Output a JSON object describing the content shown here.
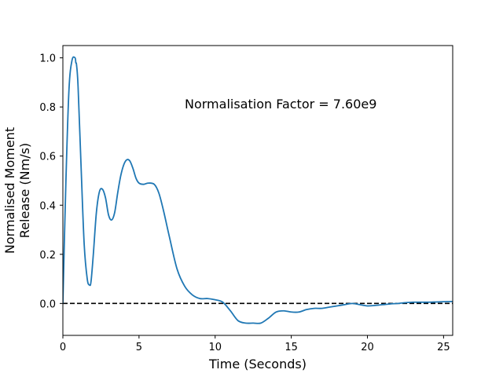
{
  "chart_data": {
    "type": "line",
    "title": "",
    "xlabel": "Time (Seconds)",
    "ylabel_lines": [
      "Normalised Moment",
      "Release (Nm/s)"
    ],
    "xlim": [
      0,
      25.6
    ],
    "ylim": [
      -0.13,
      1.05
    ],
    "x_ticks": [
      0,
      5,
      10,
      15,
      20,
      25
    ],
    "x_tick_labels": [
      "0",
      "5",
      "10",
      "15",
      "20",
      "25"
    ],
    "y_ticks": [
      0.0,
      0.2,
      0.4,
      0.6,
      0.8,
      1.0
    ],
    "y_tick_labels": [
      "0.0",
      "0.2",
      "0.4",
      "0.6",
      "0.8",
      "1.0"
    ],
    "grid": false,
    "annotation": {
      "text": "Normalisation Factor = 7.60e9",
      "x": 8.0,
      "y": 0.8
    },
    "reference_line": {
      "y": 0,
      "style": "dashed",
      "color": "#000000"
    },
    "colors": {
      "series": "#1f77b4"
    },
    "series": [
      {
        "x": [
          0,
          0.2,
          0.4,
          0.6,
          0.8,
          0.85,
          0.9,
          1.0,
          1.2,
          1.4,
          1.6,
          1.75,
          1.85,
          2.0,
          2.2,
          2.4,
          2.6,
          2.8,
          3.0,
          3.2,
          3.4,
          3.6,
          3.8,
          4.0,
          4.2,
          4.4,
          4.6,
          4.8,
          5.0,
          5.3,
          5.6,
          6.0,
          6.3,
          6.6,
          7.0,
          7.5,
          8.0,
          8.5,
          9.0,
          9.5,
          10.0,
          10.5,
          11.0,
          11.5,
          12.0,
          12.5,
          13.0,
          13.5,
          14.0,
          14.5,
          15.0,
          15.5,
          16.0,
          16.5,
          17.0,
          17.5,
          18.0,
          18.5,
          19.0,
          19.5,
          20.0,
          20.5,
          21.0,
          21.5,
          22.0,
          22.5,
          23.0,
          23.5,
          24.0,
          24.5,
          25.0,
          25.6
        ],
        "y": [
          0.0,
          0.5,
          0.87,
          0.99,
          1.0,
          0.98,
          0.97,
          0.88,
          0.55,
          0.24,
          0.1,
          0.075,
          0.09,
          0.2,
          0.37,
          0.455,
          0.465,
          0.43,
          0.36,
          0.34,
          0.37,
          0.45,
          0.52,
          0.565,
          0.585,
          0.58,
          0.55,
          0.51,
          0.49,
          0.485,
          0.49,
          0.485,
          0.45,
          0.38,
          0.27,
          0.14,
          0.07,
          0.035,
          0.02,
          0.02,
          0.015,
          0.005,
          -0.03,
          -0.07,
          -0.08,
          -0.08,
          -0.08,
          -0.06,
          -0.035,
          -0.03,
          -0.035,
          -0.035,
          -0.025,
          -0.02,
          -0.02,
          -0.015,
          -0.01,
          -0.005,
          0.0,
          -0.005,
          -0.01,
          -0.008,
          -0.005,
          -0.002,
          0.0,
          0.003,
          0.005,
          0.005,
          0.005,
          0.006,
          0.007,
          0.008
        ]
      }
    ]
  }
}
